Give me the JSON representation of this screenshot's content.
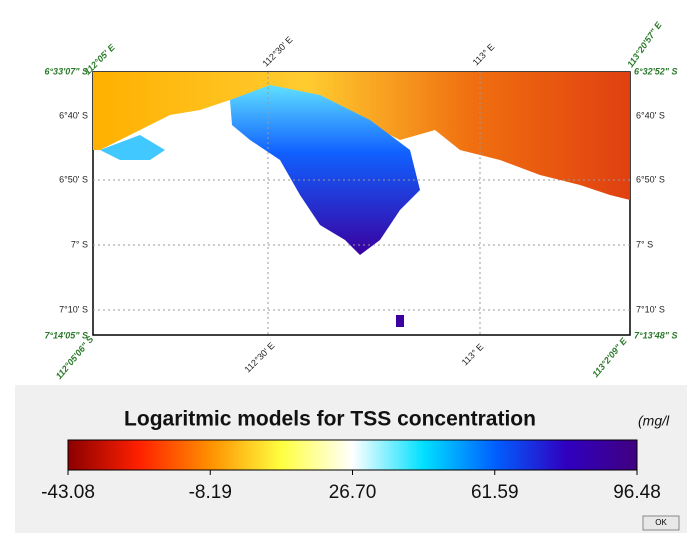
{
  "map": {
    "top_labels": [
      "112°05' E",
      "112°30' E",
      "113° E",
      "113°20'57\" E"
    ],
    "bottom_labels": [
      "112°05'06\" S",
      "112°30' E",
      "113° E",
      "113°2'09\" E"
    ],
    "left_labels": [
      "6°40' S",
      "6°50' S",
      "7° S",
      "7°10' S"
    ],
    "right_labels": [
      "6°40' S",
      "6°50' S",
      "7° S",
      "7°10' S"
    ],
    "corner_labels": {
      "top_left": "6°33'07\" S",
      "top_right": "6°32'52\" S",
      "bottom_left": "7°14'05\" S",
      "bottom_right": "7°13'48\" S"
    }
  },
  "colorbar": {
    "title": "Logaritmic models for TSS concentration",
    "unit": "(mg/l",
    "lim": [
      -43.08,
      96.48
    ],
    "ticks": [
      -43.08,
      -8.19,
      {
        "value": 26.7,
        "label": "26.70"
      },
      61.59,
      96.48
    ],
    "colors": [
      "#8b0000",
      "#ff2000",
      "#ff9000",
      "#ffff40",
      "#ffffff",
      "#00e0ff",
      "#0060ff",
      "#3000c0",
      "#400080"
    ]
  },
  "button": "OK"
}
